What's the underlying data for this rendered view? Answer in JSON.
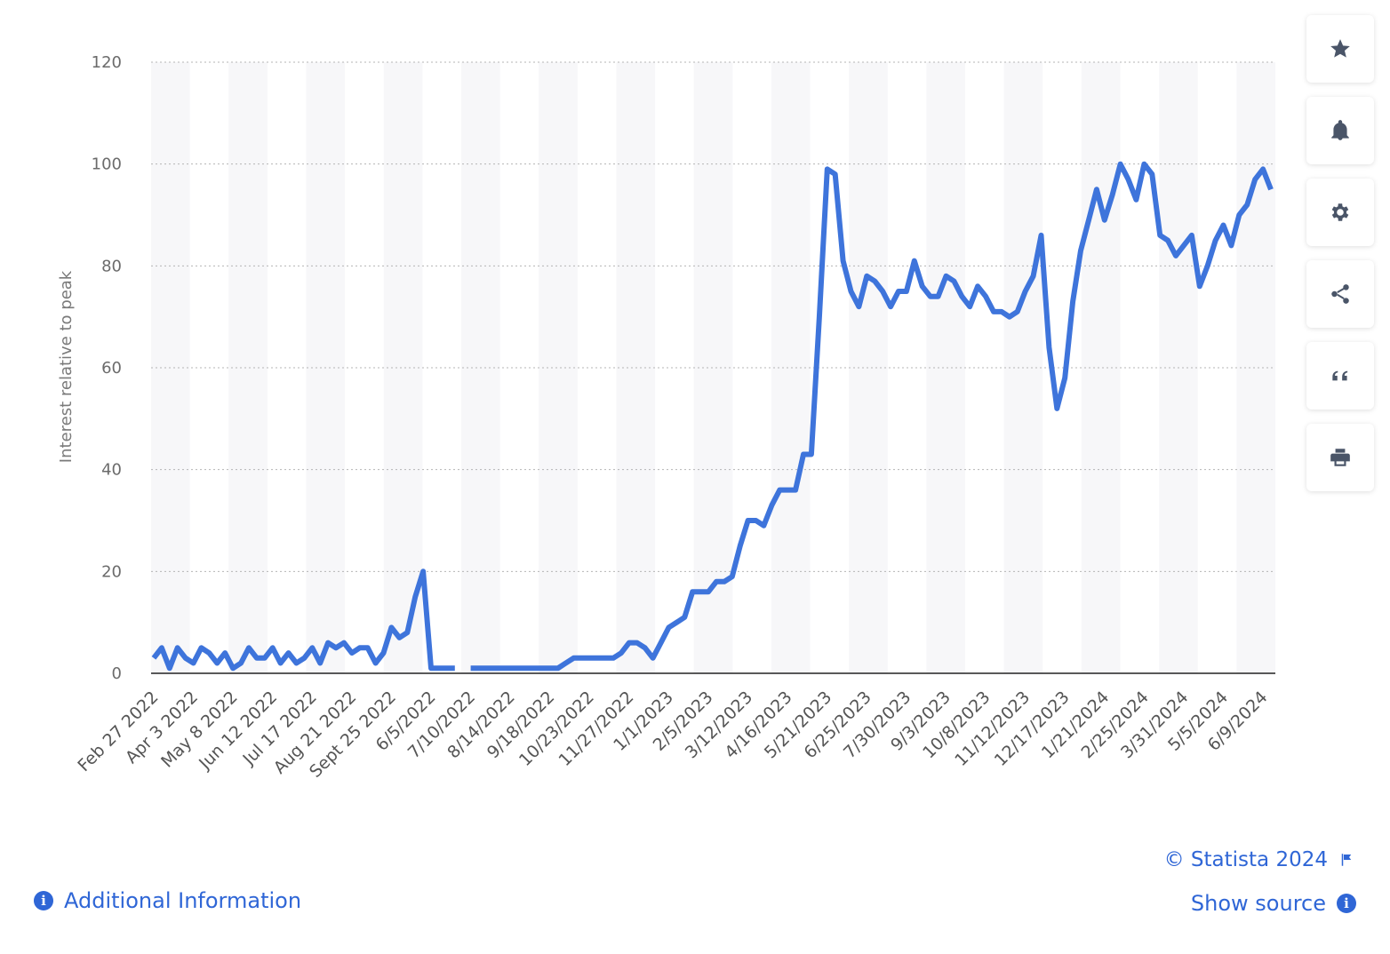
{
  "chart_data": {
    "type": "line",
    "title": "",
    "ylabel": "Interest relative to peak",
    "xlabel": "",
    "ylim": [
      0,
      120
    ],
    "yticks": [
      0,
      20,
      40,
      60,
      80,
      100,
      120
    ],
    "grid": "horizontal dotted",
    "line_color": "#3e74db",
    "x_tick_labels": [
      "Feb 27 2022",
      "Apr 3 2022",
      "May 8 2022",
      "Jun 12 2022",
      "Jul 17 2022",
      "Aug 21 2022",
      "Sept 25 2022",
      "6/5/2022",
      "7/10/2022",
      "8/14/2022",
      "9/18/2022",
      "10/23/2022",
      "11/27/2022",
      "1/1/2023",
      "2/5/2023",
      "3/12/2023",
      "4/16/2023",
      "5/21/2023",
      "6/25/2023",
      "7/30/2023",
      "9/3/2023",
      "10/8/2023",
      "11/12/2023",
      "12/17/2023",
      "1/21/2024",
      "2/25/2024",
      "3/31/2024",
      "5/5/2024",
      "6/9/2024"
    ],
    "x_tick_positions": [
      0,
      5,
      10,
      15,
      20,
      25,
      30,
      35,
      40,
      45,
      50,
      55,
      60,
      65,
      70,
      75,
      80,
      85,
      90,
      95,
      100,
      105,
      110,
      115,
      120,
      125,
      130,
      135,
      140
    ],
    "series": [
      {
        "values": [
          3,
          5,
          1,
          5,
          3,
          2,
          5,
          4,
          2,
          4,
          1,
          2,
          5,
          3,
          3,
          5,
          2,
          4,
          2,
          3,
          5,
          2,
          6,
          5,
          6,
          4,
          5,
          5,
          2,
          4,
          9,
          7,
          8,
          15,
          20,
          1,
          1,
          1,
          1,
          null,
          1,
          1,
          1,
          1,
          1,
          1,
          1,
          1,
          1,
          1,
          1,
          1,
          2,
          3,
          3,
          3,
          3,
          3,
          3,
          4,
          6,
          6,
          5,
          3,
          6,
          9,
          10,
          11,
          16,
          16,
          16,
          18,
          18,
          19,
          25,
          30,
          30,
          29,
          33,
          36,
          36,
          36,
          43,
          43,
          70,
          99,
          98,
          81,
          75,
          72,
          78,
          77,
          75,
          72,
          75,
          75,
          81,
          76,
          74,
          74,
          78,
          77,
          74,
          72,
          76,
          74,
          71,
          71,
          70,
          71,
          75,
          78,
          86,
          64,
          52,
          58,
          73,
          83,
          89,
          95,
          89,
          94,
          100,
          97,
          93,
          100,
          98,
          86,
          85,
          82,
          84,
          86,
          76,
          80,
          85,
          88,
          84,
          90,
          92,
          97,
          99,
          95
        ]
      }
    ]
  },
  "toolbar": {
    "icons": [
      "star-icon",
      "bell-icon",
      "gear-icon",
      "share-icon",
      "quote-icon",
      "print-icon"
    ]
  },
  "footer": {
    "credit": "© Statista 2024",
    "additional_info": "Additional Information",
    "show_source": "Show source",
    "info_glyph": "i",
    "accent": "#2f66d6"
  }
}
